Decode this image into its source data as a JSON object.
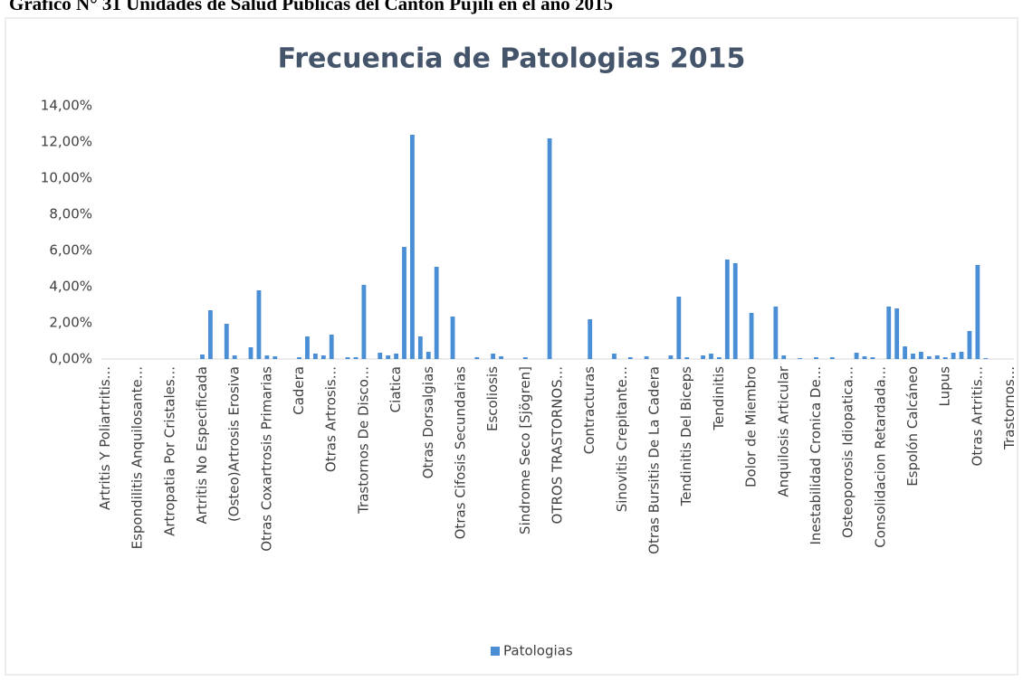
{
  "caption": "Gráfico N° 31 Unidades de Salud Públicas del Cantón Pujilí en el año 2015",
  "chart_data": {
    "type": "bar",
    "title": "Frecuencia de Patologias 2015",
    "categories": [
      "Artritis Y Poliartritis...",
      null,
      null,
      null,
      "Espondilitis Anquilosante...",
      null,
      null,
      null,
      "Artropatia Por Cristales...",
      null,
      null,
      null,
      "Artritis No Especificada",
      null,
      null,
      null,
      "(Osteo)Artrosis Erosiva",
      null,
      null,
      null,
      "Otras Coxartrosis Primarias",
      null,
      null,
      null,
      "Cadera",
      null,
      null,
      null,
      "Otras Artrosis...",
      null,
      null,
      null,
      "Trastornos De Disco...",
      null,
      null,
      null,
      "Ciatica",
      null,
      null,
      null,
      "Otras Dorsalgias",
      null,
      null,
      null,
      "Otras Cifosis Secundarias",
      null,
      null,
      null,
      "Escoliosis",
      null,
      null,
      null,
      "Sindrome Seco [Sjögren]",
      null,
      null,
      null,
      "OTROS TRASTORNOS...",
      null,
      null,
      null,
      "Contracturas",
      null,
      null,
      null,
      "Sinovitis Crepitante...",
      null,
      null,
      null,
      "Otras Bursitis De La Cadera",
      null,
      null,
      null,
      "Tendinitis Del Biceps",
      null,
      null,
      null,
      "Tendinitis",
      null,
      null,
      null,
      "Dolor de Miembro",
      null,
      null,
      null,
      "Anquilosis Articular",
      null,
      null,
      null,
      "Inestabilidad Cronica De...",
      null,
      null,
      null,
      "Osteoporosis Idiopatica...",
      null,
      null,
      null,
      "Consolidacion Retardada...",
      null,
      null,
      null,
      "Espolón Calcáneo",
      null,
      null,
      null,
      "Lupus",
      null,
      null,
      null,
      "Otras Artritis...",
      null,
      null,
      null,
      "Trastornos..."
    ],
    "series": [
      {
        "name": "Patologias",
        "color": "#4a8fd6",
        "values": [
          0,
          0,
          0,
          0,
          0,
          0,
          0,
          0,
          0,
          0,
          0,
          0,
          0.25,
          2.7,
          0,
          1.95,
          0.2,
          0,
          0.65,
          3.8,
          0.2,
          0.15,
          0,
          0,
          0.1,
          1.25,
          0.3,
          0.2,
          1.35,
          0,
          0.1,
          0.1,
          4.1,
          0,
          0.35,
          0.2,
          0.3,
          6.2,
          12.4,
          1.25,
          0.4,
          5.1,
          0,
          2.35,
          0,
          0,
          0.1,
          0,
          0.3,
          0.15,
          0,
          0,
          0.1,
          0,
          0,
          12.2,
          0,
          0,
          0,
          0,
          2.2,
          0,
          0,
          0.3,
          0,
          0.1,
          0,
          0.15,
          0,
          0,
          0.2,
          3.45,
          0.1,
          0,
          0.2,
          0.3,
          0.1,
          5.5,
          5.3,
          0,
          2.55,
          0,
          0,
          2.9,
          0.2,
          0,
          0.05,
          0,
          0.1,
          0,
          0.1,
          0,
          0,
          0.35,
          0.15,
          0.1,
          0,
          2.9,
          2.8,
          0.7,
          0.3,
          0.4,
          0.15,
          0.2,
          0.1,
          0.35,
          0.4,
          1.55,
          5.2,
          0.05,
          0,
          0,
          0
        ]
      }
    ],
    "ylim": [
      0,
      14
    ],
    "yticks": [
      {
        "value": 0,
        "label": "0,00%"
      },
      {
        "value": 2,
        "label": "2,00%"
      },
      {
        "value": 4,
        "label": "4,00%"
      },
      {
        "value": 6,
        "label": "6,00%"
      },
      {
        "value": 8,
        "label": "8,00%"
      },
      {
        "value": 10,
        "label": "10,00%"
      },
      {
        "value": 12,
        "label": "12,00%"
      },
      {
        "value": 14,
        "label": "14,00%"
      }
    ],
    "grid": false,
    "legend": "bottom"
  }
}
